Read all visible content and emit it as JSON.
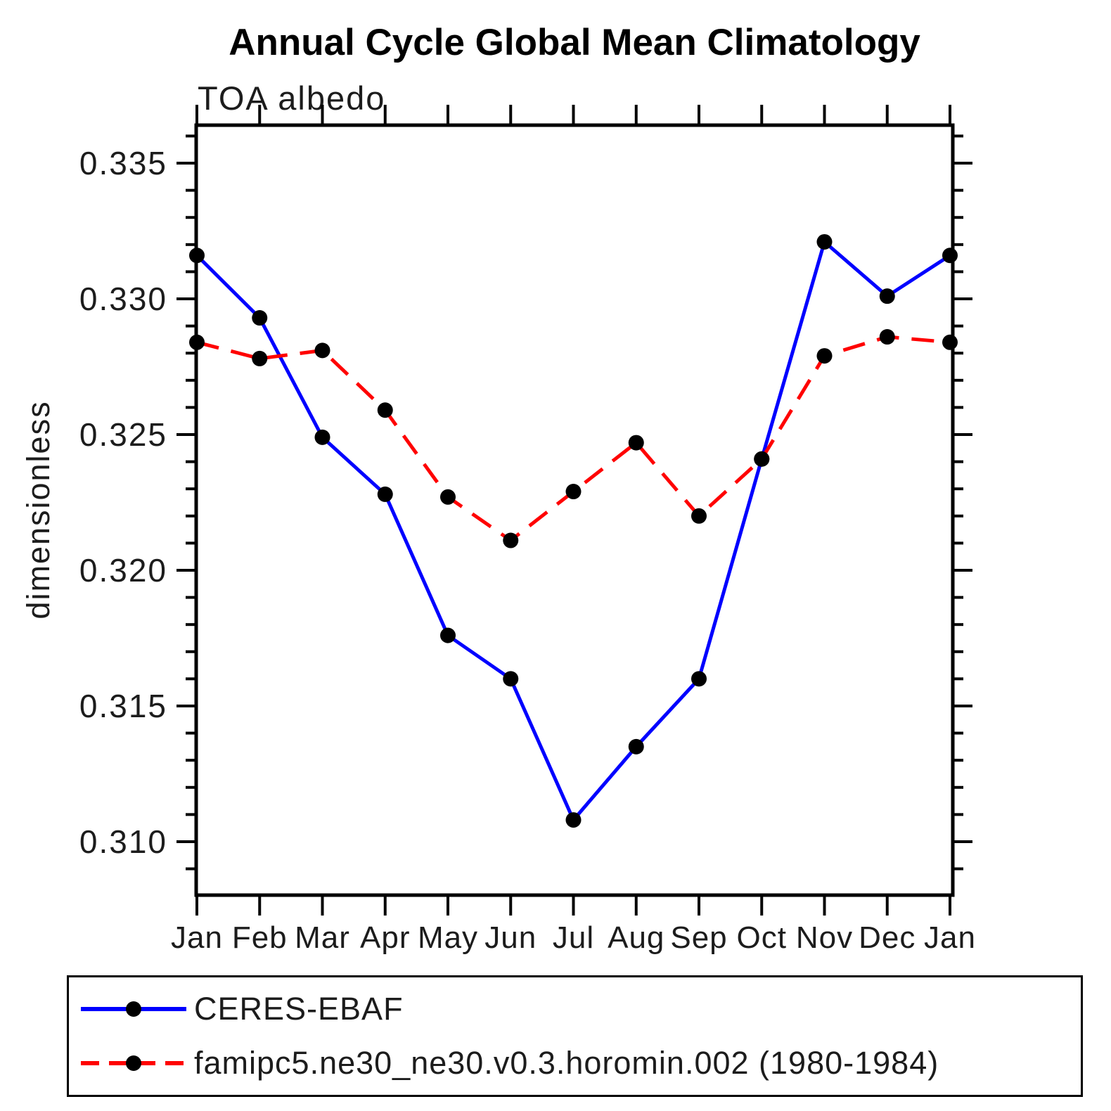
{
  "chart_data": {
    "type": "line",
    "title": "Annual Cycle Global Mean Climatology",
    "subtitle": "TOA albedo",
    "xlabel": "",
    "ylabel": "dimensionless",
    "categories": [
      "Jan",
      "Feb",
      "Mar",
      "Apr",
      "May",
      "Jun",
      "Jul",
      "Aug",
      "Sep",
      "Oct",
      "Nov",
      "Dec",
      "Jan"
    ],
    "y_ticks": [
      0.31,
      0.315,
      0.32,
      0.325,
      0.33,
      0.335
    ],
    "y_tick_labels": [
      "0.310",
      "0.315",
      "0.320",
      "0.325",
      "0.330",
      "0.335"
    ],
    "minor_tick_step": 0.001,
    "ylim": [
      0.30803,
      0.3364
    ],
    "grid": false,
    "legend_position": "bottom",
    "axis_color": "#000000",
    "marker_color": "#000000",
    "series": [
      {
        "name": "CERES-EBAF",
        "color": "#0000ff",
        "style": "solid",
        "marker": "circle",
        "values": [
          0.3316,
          0.3293,
          0.3249,
          0.3228,
          0.3176,
          0.316,
          0.3108,
          0.3135,
          0.316,
          0.3241,
          0.3321,
          0.3301,
          0.3316
        ]
      },
      {
        "name": "famipc5.ne30_ne30.v0.3.horomin.002 (1980-1984)",
        "color": "#ff0000",
        "style": "dashed",
        "marker": "circle",
        "values": [
          0.3284,
          0.3278,
          0.3281,
          0.3259,
          0.3227,
          0.3211,
          0.3229,
          0.3247,
          0.322,
          0.3241,
          0.3279,
          0.3286,
          0.3284
        ]
      }
    ]
  }
}
